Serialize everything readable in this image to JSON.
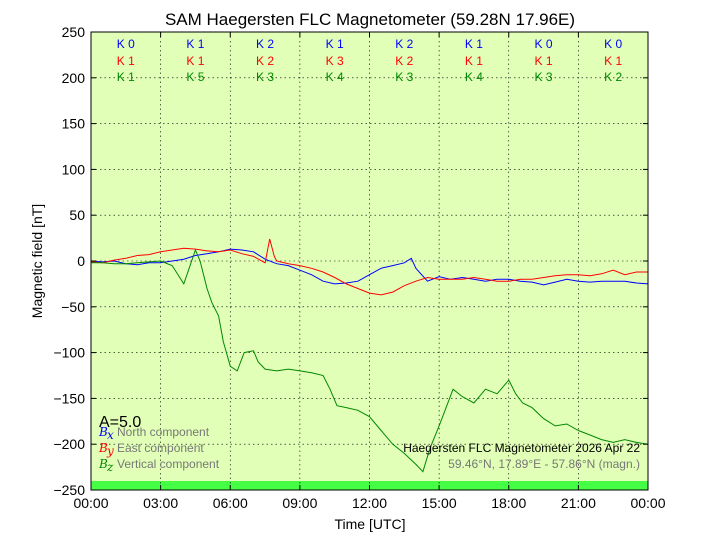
{
  "chart_data": {
    "type": "line",
    "title": "SAM Haegersten FLC Magnetometer (59.28N 17.96E)",
    "xlabel": "Time [UTC]",
    "ylabel": "Magnetic field [nT]",
    "xlim": [
      0,
      24
    ],
    "ylim": [
      -250,
      250
    ],
    "x_tick_labels": [
      "00:00",
      "03:00",
      "06:00",
      "09:00",
      "12:00",
      "15:00",
      "18:00",
      "21:00",
      "00:00"
    ],
    "y_ticks": [
      -250,
      -200,
      -150,
      -100,
      -50,
      0,
      50,
      100,
      150,
      200,
      250
    ],
    "grid": true,
    "background_color": "#e2ffb8",
    "k_indices": {
      "hours": [
        1.5,
        4.5,
        7.5,
        10.5,
        13.5,
        16.5,
        19.5,
        22.5
      ],
      "rows": [
        {
          "color": "#0000ff",
          "labels": [
            "K 0",
            "K 1",
            "K 2",
            "K 1",
            "K 2",
            "K 1",
            "K 0",
            "K 0"
          ]
        },
        {
          "color": "#ff0000",
          "labels": [
            "K 1",
            "K 1",
            "K 2",
            "K 3",
            "K 2",
            "K 1",
            "K 1",
            "K 1"
          ]
        },
        {
          "color": "#008800",
          "labels": [
            "K 1",
            "K 5",
            "K 3",
            "K 4",
            "K 3",
            "K 4",
            "K 3",
            "K 2"
          ]
        }
      ]
    },
    "a_index": "A=5.0",
    "legend": {
      "placement": "bottom-left",
      "entries": [
        {
          "symbol": "B",
          "sub": "x",
          "label": "North component",
          "color": "#0000ff"
        },
        {
          "symbol": "B",
          "sub": "y",
          "label": "East component",
          "color": "#ff0000"
        },
        {
          "symbol": "B",
          "sub": "z",
          "label": "Vertical component",
          "color": "#008800"
        }
      ]
    },
    "annotation": {
      "station": "Haegersten FLC Magnetometer 2026 Apr 22",
      "coords": "59.46°N, 17.89°E - 57.86°N (magn.)"
    },
    "series": [
      {
        "name": "North component",
        "color": "#0000ff",
        "points": [
          [
            0,
            0
          ],
          [
            0.5,
            -1
          ],
          [
            1,
            0
          ],
          [
            1.5,
            -3
          ],
          [
            2,
            -4
          ],
          [
            2.5,
            -2
          ],
          [
            3,
            -2
          ],
          [
            3.5,
            0
          ],
          [
            4,
            2
          ],
          [
            4.5,
            6
          ],
          [
            5,
            8
          ],
          [
            5.5,
            10
          ],
          [
            6,
            13
          ],
          [
            6.5,
            12
          ],
          [
            7,
            10
          ],
          [
            7.5,
            2
          ],
          [
            8,
            -3
          ],
          [
            8.5,
            -5
          ],
          [
            9,
            -10
          ],
          [
            9.5,
            -15
          ],
          [
            10,
            -22
          ],
          [
            10.5,
            -25
          ],
          [
            11,
            -24
          ],
          [
            11.5,
            -22
          ],
          [
            12,
            -15
          ],
          [
            12.5,
            -8
          ],
          [
            13,
            -5
          ],
          [
            13.5,
            -2
          ],
          [
            13.8,
            3
          ],
          [
            14,
            -8
          ],
          [
            14.5,
            -22
          ],
          [
            15,
            -17
          ],
          [
            15.5,
            -20
          ],
          [
            16,
            -18
          ],
          [
            16.5,
            -20
          ],
          [
            17,
            -22
          ],
          [
            17.5,
            -20
          ],
          [
            18,
            -20
          ],
          [
            18.5,
            -22
          ],
          [
            19,
            -23
          ],
          [
            19.5,
            -26
          ],
          [
            20,
            -23
          ],
          [
            20.5,
            -20
          ],
          [
            21,
            -22
          ],
          [
            21.5,
            -23
          ],
          [
            22,
            -22
          ],
          [
            22.5,
            -22
          ],
          [
            23,
            -22
          ],
          [
            23.5,
            -24
          ],
          [
            24,
            -25
          ]
        ]
      },
      {
        "name": "East component",
        "color": "#ff0000",
        "points": [
          [
            0,
            -1
          ],
          [
            0.5,
            -2
          ],
          [
            1,
            1
          ],
          [
            1.5,
            3
          ],
          [
            2,
            6
          ],
          [
            2.5,
            7
          ],
          [
            3,
            10
          ],
          [
            3.5,
            12
          ],
          [
            4,
            14
          ],
          [
            4.5,
            13
          ],
          [
            5,
            11
          ],
          [
            5.5,
            10
          ],
          [
            6,
            12
          ],
          [
            6.5,
            8
          ],
          [
            7,
            5
          ],
          [
            7.5,
            -2
          ],
          [
            7.7,
            24
          ],
          [
            7.9,
            5
          ],
          [
            8,
            0
          ],
          [
            8.5,
            -3
          ],
          [
            9,
            -5
          ],
          [
            9.5,
            -8
          ],
          [
            10,
            -12
          ],
          [
            10.5,
            -18
          ],
          [
            11,
            -25
          ],
          [
            11.5,
            -30
          ],
          [
            12,
            -35
          ],
          [
            12.5,
            -37
          ],
          [
            13,
            -34
          ],
          [
            13.5,
            -27
          ],
          [
            14,
            -22
          ],
          [
            14.5,
            -18
          ],
          [
            15,
            -20
          ],
          [
            15.5,
            -20
          ],
          [
            16,
            -20
          ],
          [
            16.5,
            -18
          ],
          [
            17,
            -20
          ],
          [
            17.5,
            -22
          ],
          [
            18,
            -22
          ],
          [
            18.5,
            -20
          ],
          [
            19,
            -20
          ],
          [
            19.5,
            -18
          ],
          [
            20,
            -16
          ],
          [
            20.5,
            -15
          ],
          [
            21,
            -15
          ],
          [
            21.5,
            -16
          ],
          [
            22,
            -14
          ],
          [
            22.5,
            -10
          ],
          [
            23,
            -15
          ],
          [
            23.5,
            -12
          ],
          [
            24,
            -12
          ]
        ]
      },
      {
        "name": "Vertical component",
        "color": "#008800",
        "points": [
          [
            0,
            -2
          ],
          [
            0.5,
            -2
          ],
          [
            1,
            -3
          ],
          [
            1.5,
            -3
          ],
          [
            2,
            -2
          ],
          [
            2.5,
            -1
          ],
          [
            3,
            0
          ],
          [
            3.5,
            -5
          ],
          [
            4,
            -25
          ],
          [
            4.2,
            -10
          ],
          [
            4.5,
            12
          ],
          [
            4.7,
            0
          ],
          [
            5,
            -30
          ],
          [
            5.2,
            -45
          ],
          [
            5.5,
            -60
          ],
          [
            5.7,
            -88
          ],
          [
            6,
            -115
          ],
          [
            6.3,
            -120
          ],
          [
            6.6,
            -100
          ],
          [
            7,
            -98
          ],
          [
            7.2,
            -110
          ],
          [
            7.5,
            -118
          ],
          [
            8,
            -120
          ],
          [
            8.5,
            -118
          ],
          [
            9,
            -120
          ],
          [
            9.5,
            -122
          ],
          [
            10,
            -125
          ],
          [
            10.3,
            -140
          ],
          [
            10.6,
            -158
          ],
          [
            11,
            -160
          ],
          [
            11.5,
            -163
          ],
          [
            12,
            -170
          ],
          [
            12.5,
            -185
          ],
          [
            13,
            -200
          ],
          [
            13.5,
            -210
          ],
          [
            14,
            -222
          ],
          [
            14.3,
            -230
          ],
          [
            14.6,
            -205
          ],
          [
            15,
            -180
          ],
          [
            15.3,
            -160
          ],
          [
            15.6,
            -140
          ],
          [
            16,
            -148
          ],
          [
            16.5,
            -155
          ],
          [
            17,
            -140
          ],
          [
            17.5,
            -145
          ],
          [
            18,
            -130
          ],
          [
            18.3,
            -145
          ],
          [
            18.6,
            -155
          ],
          [
            19,
            -160
          ],
          [
            19.5,
            -172
          ],
          [
            20,
            -180
          ],
          [
            20.5,
            -178
          ],
          [
            21,
            -185
          ],
          [
            21.5,
            -190
          ],
          [
            22,
            -195
          ],
          [
            22.5,
            -198
          ],
          [
            23,
            -195
          ],
          [
            23.5,
            -198
          ],
          [
            24,
            -200
          ]
        ]
      }
    ]
  }
}
